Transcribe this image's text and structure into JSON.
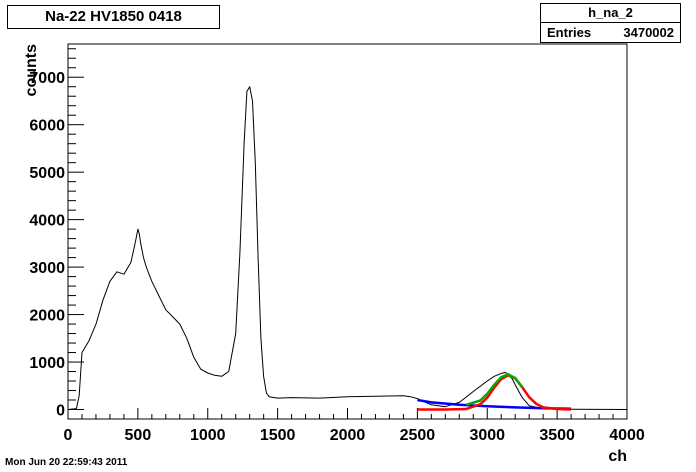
{
  "title": "Na-22 HV1850 0418",
  "stats": {
    "name": "h_na_2",
    "entries_label": "Entries",
    "entries_value": "3470002"
  },
  "footer": {
    "timestamp": "Mon Jun 20 22:59:43 2011"
  },
  "colors": {
    "histogram": "#000000",
    "fit_total": "#ff0000",
    "fit_background": "#0000ff",
    "fit_peak": "#00aa00"
  },
  "chart_data": {
    "type": "line",
    "title": "Na-22 HV1850 0418",
    "xlabel": "ch",
    "ylabel": "counts",
    "xlim": [
      0,
      4000
    ],
    "ylim": [
      -200,
      7700
    ],
    "xticks": [
      0,
      500,
      1000,
      1500,
      2000,
      2500,
      3000,
      3500,
      4000
    ],
    "yticks": [
      0,
      1000,
      2000,
      3000,
      4000,
      5000,
      6000,
      7000
    ],
    "grid": false,
    "series": [
      {
        "style": "histogram",
        "color": "#000000",
        "x": [
          0,
          60,
          80,
          100,
          150,
          200,
          250,
          300,
          350,
          400,
          450,
          480,
          500,
          510,
          520,
          540,
          560,
          600,
          650,
          700,
          750,
          800,
          850,
          900,
          950,
          1000,
          1050,
          1100,
          1150,
          1200,
          1230,
          1260,
          1280,
          1300,
          1320,
          1340,
          1360,
          1380,
          1400,
          1420,
          1440,
          1460,
          1500,
          1600,
          1800,
          2000,
          2200,
          2400,
          2450,
          2500,
          2550,
          2600,
          2700,
          2800,
          2900,
          3000,
          3050,
          3100,
          3130,
          3150,
          3180,
          3200,
          3250,
          3300,
          3400,
          3500,
          3600,
          3800,
          4000
        ],
        "y": [
          0,
          20,
          300,
          1200,
          1450,
          1800,
          2300,
          2700,
          2900,
          2850,
          3100,
          3500,
          3800,
          3700,
          3500,
          3200,
          3000,
          2700,
          2400,
          2100,
          1950,
          1800,
          1500,
          1100,
          850,
          770,
          720,
          700,
          800,
          1600,
          3300,
          5600,
          6700,
          6800,
          6500,
          5200,
          3200,
          1500,
          700,
          350,
          270,
          260,
          240,
          250,
          240,
          270,
          280,
          290,
          270,
          230,
          160,
          100,
          60,
          150,
          380,
          600,
          700,
          760,
          780,
          740,
          640,
          520,
          250,
          80,
          20,
          10,
          5,
          2,
          0
        ]
      },
      {
        "name": "",
        "style": "fit",
        "color": "#0000ff",
        "x": [
          2500,
          2600,
          2800,
          3000,
          3200,
          3400,
          3600
        ],
        "y": [
          200,
          150,
          100,
          70,
          45,
          25,
          15
        ]
      },
      {
        "name": "",
        "style": "fit",
        "color": "#ff0000",
        "x": [
          2500,
          2700,
          2850,
          2950,
          3000,
          3050,
          3100,
          3150,
          3200,
          3250,
          3300,
          3350,
          3400,
          3500,
          3600
        ],
        "y": [
          0,
          0,
          10,
          110,
          250,
          460,
          640,
          720,
          660,
          470,
          260,
          120,
          45,
          10,
          0
        ]
      },
      {
        "name": "",
        "style": "fit",
        "color": "#00aa00",
        "x": [
          2850,
          2950,
          3000,
          3050,
          3100,
          3150,
          3200,
          3250
        ],
        "y": [
          100,
          190,
          330,
          520,
          680,
          740,
          660,
          470
        ]
      }
    ]
  }
}
